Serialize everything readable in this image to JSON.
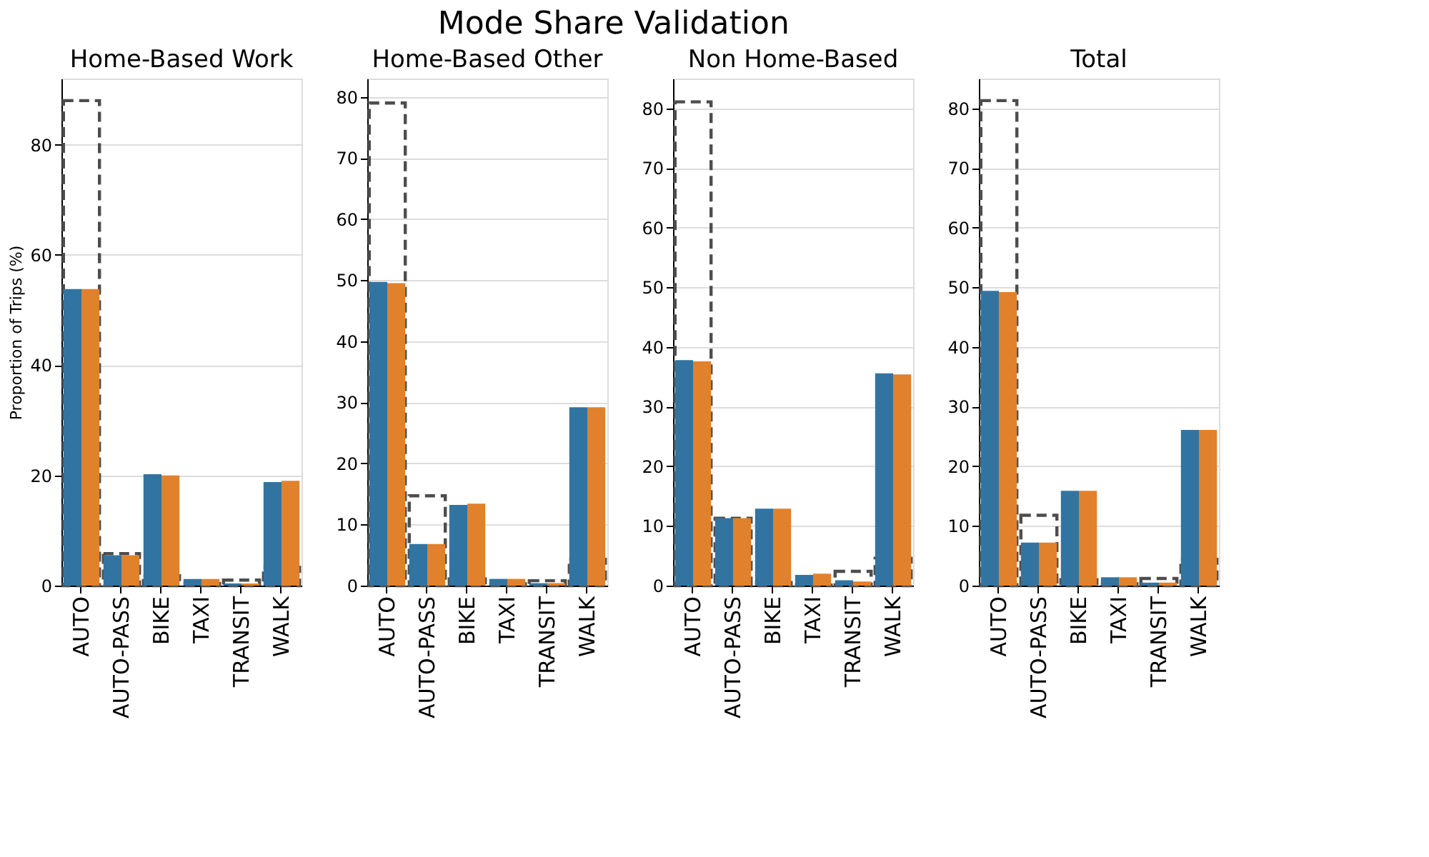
{
  "chart_data": [
    {
      "type": "bar",
      "title": "Home-Based Work",
      "ylabel": "Proportion of Trips (%)",
      "annotations": [
        "Mode Share Validation"
      ],
      "categories": [
        "AUTO",
        "AUTO-PASS",
        "BIKE",
        "TAXI",
        "TRANSIT",
        "WALK"
      ],
      "ylim": [
        0,
        92
      ],
      "yticks": [
        0,
        20,
        40,
        60,
        80
      ],
      "grid": "y",
      "series": [
        {
          "color": "#3274a1",
          "values": [
            53.8,
            5.5,
            20.2,
            1.2,
            0.4,
            18.8
          ]
        },
        {
          "color": "#e1812c",
          "values": [
            53.8,
            5.5,
            20.0,
            1.2,
            0.4,
            19.0
          ]
        },
        {
          "color": "#4d4d4d",
          "line_style": "dashed",
          "values": [
            88,
            5.8,
            1.8,
            0.4,
            1.0,
            3.3
          ]
        }
      ]
    },
    {
      "type": "bar",
      "title": "Home-Based Other",
      "categories": [
        "AUTO",
        "AUTO-PASS",
        "BIKE",
        "TAXI",
        "TRANSIT",
        "WALK"
      ],
      "ylim": [
        0,
        83
      ],
      "yticks": [
        0,
        10,
        20,
        30,
        40,
        50,
        60,
        70,
        80
      ],
      "grid": "y",
      "series": [
        {
          "color": "#3274a1",
          "values": [
            49.7,
            6.8,
            13.2,
            1.1,
            0.4,
            29.2
          ]
        },
        {
          "color": "#e1812c",
          "values": [
            49.5,
            6.8,
            13.4,
            1.1,
            0.4,
            29.2
          ]
        },
        {
          "color": "#4d4d4d",
          "line_style": "dashed",
          "values": [
            79,
            14.7,
            1.1,
            0.3,
            0.8,
            4.3
          ]
        }
      ]
    },
    {
      "type": "bar",
      "title": "Non Home-Based",
      "categories": [
        "AUTO",
        "AUTO-PASS",
        "BIKE",
        "TAXI",
        "TRANSIT",
        "WALK"
      ],
      "ylim": [
        0,
        85
      ],
      "yticks": [
        0,
        10,
        20,
        30,
        40,
        50,
        60,
        70,
        80
      ],
      "grid": "y",
      "series": [
        {
          "color": "#3274a1",
          "values": [
            37.8,
            11.3,
            12.9,
            1.8,
            0.9,
            35.6
          ]
        },
        {
          "color": "#e1812c",
          "values": [
            37.6,
            11.3,
            12.9,
            2.0,
            0.7,
            35.4
          ]
        },
        {
          "color": "#4d4d4d",
          "line_style": "dashed",
          "values": [
            81.1,
            11.3,
            0.5,
            0.1,
            2.4,
            4.6
          ]
        }
      ]
    },
    {
      "type": "bar",
      "title": "Total",
      "categories": [
        "AUTO",
        "AUTO-PASS",
        "BIKE",
        "TAXI",
        "TRANSIT",
        "WALK"
      ],
      "ylim": [
        0,
        85
      ],
      "yticks": [
        0,
        10,
        20,
        30,
        40,
        50,
        60,
        70,
        80
      ],
      "grid": "y",
      "series": [
        {
          "color": "#3274a1",
          "values": [
            49.4,
            7.2,
            15.9,
            1.4,
            0.5,
            26.1
          ]
        },
        {
          "color": "#e1812c",
          "values": [
            49.2,
            7.2,
            15.9,
            1.4,
            0.5,
            26.1
          ]
        },
        {
          "color": "#4d4d4d",
          "line_style": "dashed",
          "values": [
            81.3,
            11.8,
            1.0,
            0.3,
            1.2,
            4.4
          ]
        }
      ]
    }
  ]
}
